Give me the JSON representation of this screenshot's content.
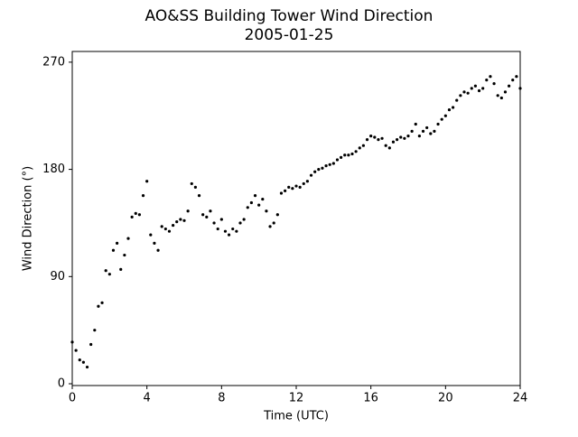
{
  "chart_data": {
    "type": "scatter",
    "title": "AO&SS Building Tower Wind Direction",
    "subtitle": "2005-01-25",
    "x_label": "Time (UTC)",
    "y_label": "Wind Direction (°)",
    "xlim": [
      0,
      24
    ],
    "xticks": [
      0,
      4,
      8,
      12,
      16,
      20,
      24
    ],
    "ylim": [
      -1.5,
      279
    ],
    "yticks": [
      0,
      90,
      180,
      270
    ],
    "color": "#000000",
    "x": [
      0.0,
      0.2,
      0.4,
      0.6,
      0.8,
      1.0,
      1.2,
      1.4,
      1.6,
      1.8,
      2.0,
      2.2,
      2.4,
      2.6,
      2.8,
      3.0,
      3.2,
      3.4,
      3.6,
      3.8,
      4.0,
      4.2,
      4.4,
      4.6,
      4.8,
      5.0,
      5.2,
      5.4,
      5.6,
      5.8,
      6.0,
      6.2,
      6.4,
      6.6,
      6.8,
      7.0,
      7.2,
      7.4,
      7.6,
      7.8,
      8.0,
      8.2,
      8.4,
      8.6,
      8.8,
      9.0,
      9.2,
      9.4,
      9.6,
      9.8,
      10.0,
      10.2,
      10.4,
      10.6,
      10.8,
      11.0,
      11.2,
      11.4,
      11.6,
      11.8,
      12.0,
      12.2,
      12.4,
      12.6,
      12.8,
      13.0,
      13.2,
      13.4,
      13.6,
      13.8,
      14.0,
      14.2,
      14.4,
      14.6,
      14.8,
      15.0,
      15.2,
      15.4,
      15.6,
      15.8,
      16.0,
      16.2,
      16.4,
      16.6,
      16.8,
      17.0,
      17.2,
      17.4,
      17.6,
      17.8,
      18.0,
      18.2,
      18.4,
      18.6,
      18.8,
      19.0,
      19.2,
      19.4,
      19.6,
      19.8,
      20.0,
      20.2,
      20.4,
      20.6,
      20.8,
      21.0,
      21.2,
      21.4,
      21.6,
      21.8,
      22.0,
      22.2,
      22.4,
      22.6,
      22.8,
      23.0,
      23.2,
      23.4,
      23.6,
      23.8,
      24.0
    ],
    "values": [
      35,
      28,
      20,
      18,
      14,
      33,
      45,
      65,
      68,
      95,
      92,
      112,
      118,
      96,
      108,
      122,
      140,
      143,
      142,
      158,
      170,
      125,
      118,
      112,
      132,
      130,
      128,
      133,
      136,
      138,
      137,
      145,
      168,
      165,
      158,
      142,
      140,
      145,
      135,
      130,
      138,
      128,
      125,
      130,
      128,
      135,
      138,
      148,
      152,
      158,
      150,
      155,
      145,
      132,
      135,
      142,
      160,
      162,
      165,
      164,
      166,
      165,
      168,
      170,
      175,
      178,
      180,
      181,
      183,
      184,
      185,
      188,
      190,
      192,
      192,
      193,
      195,
      198,
      200,
      205,
      208,
      207,
      205,
      206,
      200,
      198,
      203,
      205,
      207,
      206,
      208,
      212,
      218,
      208,
      212,
      215,
      210,
      212,
      218,
      222,
      225,
      230,
      232,
      238,
      242,
      245,
      244,
      248,
      250,
      246,
      248,
      255,
      258,
      252,
      242,
      240,
      245,
      250,
      255,
      258,
      248
    ]
  }
}
